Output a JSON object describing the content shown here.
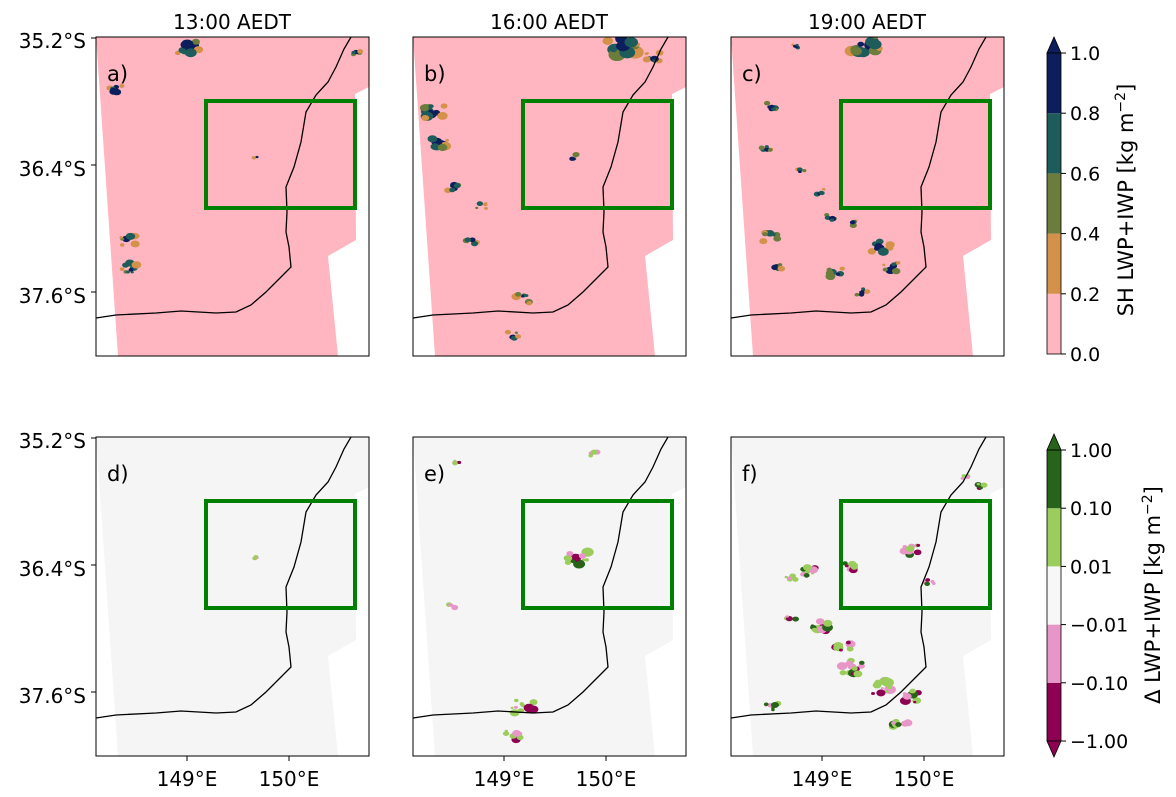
{
  "columns": [
    {
      "time": "13:00 AEDT"
    },
    {
      "time": "16:00 AEDT"
    },
    {
      "time": "19:00 AEDT"
    }
  ],
  "panels": [
    {
      "label": "a)",
      "row": "sh"
    },
    {
      "label": "b)",
      "row": "sh"
    },
    {
      "label": "c)",
      "row": "sh"
    },
    {
      "label": "d)",
      "row": "delta"
    },
    {
      "label": "e)",
      "row": "delta"
    },
    {
      "label": "f)",
      "row": "delta"
    }
  ],
  "y_ticks": [
    "35.2°S",
    "36.4°S",
    "37.6°S"
  ],
  "x_ticks": [
    "149°E",
    "150°E"
  ],
  "colorbar_top": {
    "label": "SH LWP+IWP [kg m",
    "label_sup": "−2",
    "label_end": "]",
    "tick_labels": [
      "0.0",
      "0.2",
      "0.4",
      "0.6",
      "0.8",
      "1.0"
    ],
    "colors": [
      "#ffb6c1",
      "#d4914a",
      "#6b7c3c",
      "#1e5c5c",
      "#0c1f5c"
    ],
    "extend": "max"
  },
  "colorbar_bottom": {
    "label": "Δ LWP+IWP [kg m",
    "label_sup": "−2",
    "label_end": "]",
    "tick_labels": [
      "−1.00",
      "−0.10",
      "−0.01",
      "0.01",
      "0.10",
      "1.00"
    ],
    "colors": [
      "#8e0152",
      "#e796c7",
      "#f7f7f7",
      "#9acd5c",
      "#276419"
    ],
    "extend": "both"
  },
  "colors": {
    "domain_top": "#ffb6c1",
    "domain_bottom": "#f5f5f5",
    "box": "#008000",
    "coast": "#000000"
  }
}
